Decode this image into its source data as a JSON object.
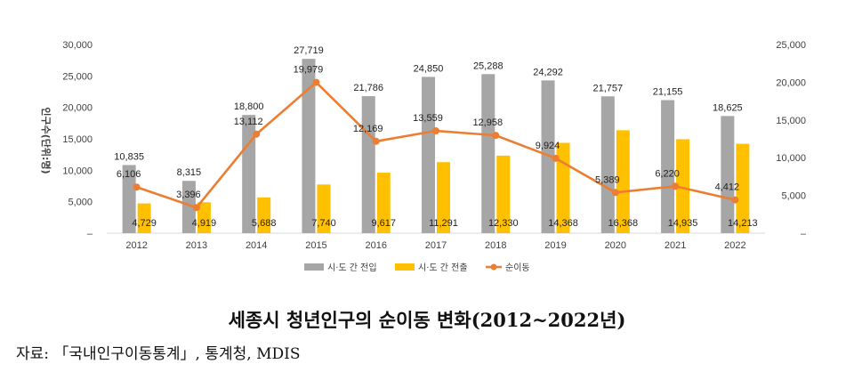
{
  "chart_data": {
    "type": "bar",
    "categories": [
      "2012",
      "2013",
      "2014",
      "2015",
      "2016",
      "2017",
      "2018",
      "2019",
      "2020",
      "2021",
      "2022"
    ],
    "series": [
      {
        "name": "시·도 간 전입",
        "type": "bar",
        "axis": "left",
        "color": "#a6a6a6",
        "values": [
          10835,
          8315,
          18800,
          27719,
          21786,
          24850,
          25288,
          24292,
          21757,
          21155,
          18625
        ]
      },
      {
        "name": "시·도 간 전출",
        "type": "bar",
        "axis": "left",
        "color": "#ffc000",
        "values": [
          4729,
          4919,
          5688,
          7740,
          9617,
          11291,
          12330,
          14368,
          16368,
          14935,
          14213
        ]
      },
      {
        "name": "순이동",
        "type": "line",
        "axis": "right",
        "color": "#ed7d31",
        "values": [
          6106,
          3396,
          13112,
          19979,
          12169,
          13559,
          12958,
          9924,
          5389,
          6220,
          4412
        ]
      }
    ],
    "ylabel": "인구수(단위:명)",
    "ylim_left": [
      0,
      30000
    ],
    "ylim_right": [
      0,
      25000
    ],
    "left_ticks": [
      "–",
      "5,000",
      "10,000",
      "15,000",
      "20,000",
      "25,000",
      "30,000"
    ],
    "right_ticks": [
      "–",
      "5,000",
      "10,000",
      "15,000",
      "20,000",
      "25,000"
    ],
    "legend_position": "bottom",
    "grid": false
  },
  "caption": "세종시 청년인구의 순이동 변화(2012~2022년)",
  "source": "자료: 「국내인구이동통계」, 통계청, MDIS"
}
